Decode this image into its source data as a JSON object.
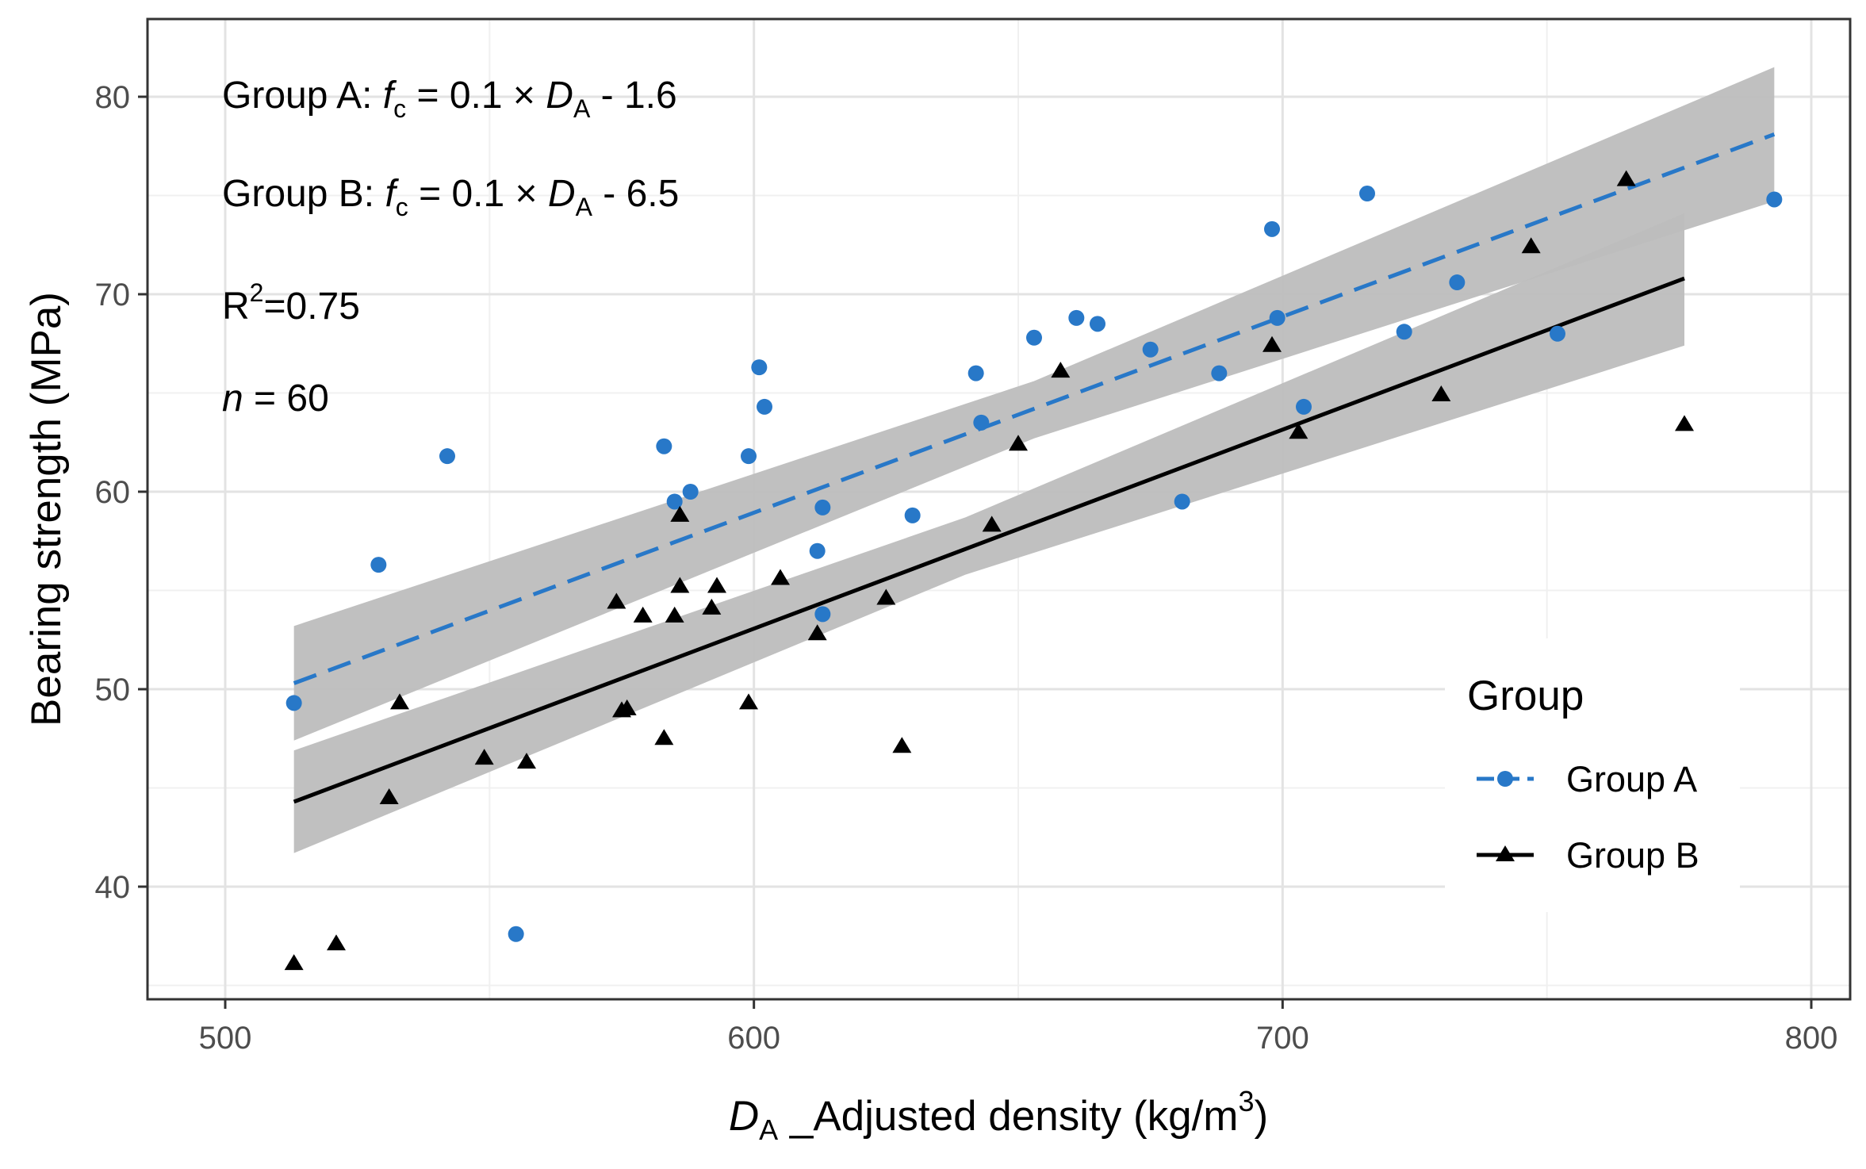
{
  "chart_data": {
    "type": "scatter",
    "title": "",
    "xlabel": {
      "italic": "D",
      "sub": "A",
      "rest": " _Adjusted density (kg/m",
      "sup": "3",
      "end": ")"
    },
    "ylabel": "Bearing strength (MPa)",
    "xlim": [
      485,
      808
    ],
    "ylim": [
      34,
      83.8
    ],
    "xticks": [
      500,
      600,
      700,
      800
    ],
    "yticks": [
      40,
      50,
      60,
      70,
      80
    ],
    "xminor": [
      550,
      650,
      750
    ],
    "yminor": [
      35,
      45,
      55,
      65,
      75
    ],
    "grid": true,
    "legend": {
      "title": "Group",
      "position": "bottom-right",
      "entries": [
        "Group A",
        "Group B"
      ]
    },
    "annotations": {
      "eqA": {
        "prefix": "Group A: ",
        "f": "f",
        "fsub": "c",
        "mid": " = 0.1 × ",
        "d": "D",
        "dsub": "A",
        "tail": " - 1.6"
      },
      "eqB": {
        "prefix": "Group B: ",
        "f": "f",
        "fsub": "c",
        "mid": " = 0.1 × ",
        "d": "D",
        "dsub": "A",
        "tail": " - 6.5"
      },
      "r2": {
        "base": "R",
        "sup": "2",
        "tail": "=0.75"
      },
      "n": {
        "italic": "n",
        "tail": " = 60"
      }
    },
    "series": [
      {
        "name": "Group A",
        "color": "#2878c8",
        "marker": "circle",
        "line": "dashed",
        "fit": {
          "x": [
            513,
            793
          ],
          "y": [
            50.3,
            78.1
          ]
        },
        "ci": {
          "x": [
            513,
            653,
            793
          ],
          "upper": [
            53.2,
            65.6,
            81.5
          ],
          "lower": [
            47.4,
            62.7,
            74.7
          ]
        },
        "points": [
          [
            513,
            49.3
          ],
          [
            529,
            56.3
          ],
          [
            542,
            61.8
          ],
          [
            555,
            37.6
          ],
          [
            583,
            62.3
          ],
          [
            585,
            59.5
          ],
          [
            588,
            60.0
          ],
          [
            599,
            61.8
          ],
          [
            601,
            66.3
          ],
          [
            602,
            64.3
          ],
          [
            612,
            57.0
          ],
          [
            613,
            59.2
          ],
          [
            613,
            53.8
          ],
          [
            630,
            58.8
          ],
          [
            642,
            66.0
          ],
          [
            643,
            63.5
          ],
          [
            653,
            67.8
          ],
          [
            661,
            68.8
          ],
          [
            665,
            68.5
          ],
          [
            675,
            67.2
          ],
          [
            681,
            59.5
          ],
          [
            688,
            66.0
          ],
          [
            698,
            73.3
          ],
          [
            699,
            68.8
          ],
          [
            704,
            64.3
          ],
          [
            716,
            75.1
          ],
          [
            723,
            68.1
          ],
          [
            733,
            70.6
          ],
          [
            752,
            68.0
          ],
          [
            793,
            74.8
          ]
        ]
      },
      {
        "name": "Group B",
        "color": "#000000",
        "marker": "triangle",
        "line": "solid",
        "fit": {
          "x": [
            513,
            776
          ],
          "y": [
            44.3,
            70.8
          ]
        },
        "ci": {
          "x": [
            513,
            640,
            776
          ],
          "upper": [
            46.9,
            58.7,
            74.1
          ],
          "lower": [
            41.7,
            55.8,
            67.4
          ]
        },
        "points": [
          [
            513,
            36.1
          ],
          [
            521,
            37.1
          ],
          [
            531,
            44.5
          ],
          [
            533,
            49.3
          ],
          [
            549,
            46.5
          ],
          [
            557,
            46.3
          ],
          [
            574,
            54.4
          ],
          [
            575,
            48.9
          ],
          [
            576,
            49.0
          ],
          [
            579,
            53.7
          ],
          [
            583,
            47.5
          ],
          [
            585,
            53.7
          ],
          [
            586,
            58.8
          ],
          [
            586,
            55.2
          ],
          [
            592,
            54.1
          ],
          [
            593,
            55.2
          ],
          [
            599,
            49.3
          ],
          [
            605,
            55.6
          ],
          [
            612,
            52.8
          ],
          [
            625,
            54.6
          ],
          [
            628,
            47.1
          ],
          [
            645,
            58.3
          ],
          [
            650,
            62.4
          ],
          [
            658,
            66.1
          ],
          [
            698,
            67.4
          ],
          [
            703,
            63.0
          ],
          [
            730,
            64.9
          ],
          [
            747,
            72.4
          ],
          [
            765,
            75.8
          ],
          [
            776,
            63.4
          ]
        ]
      }
    ]
  }
}
